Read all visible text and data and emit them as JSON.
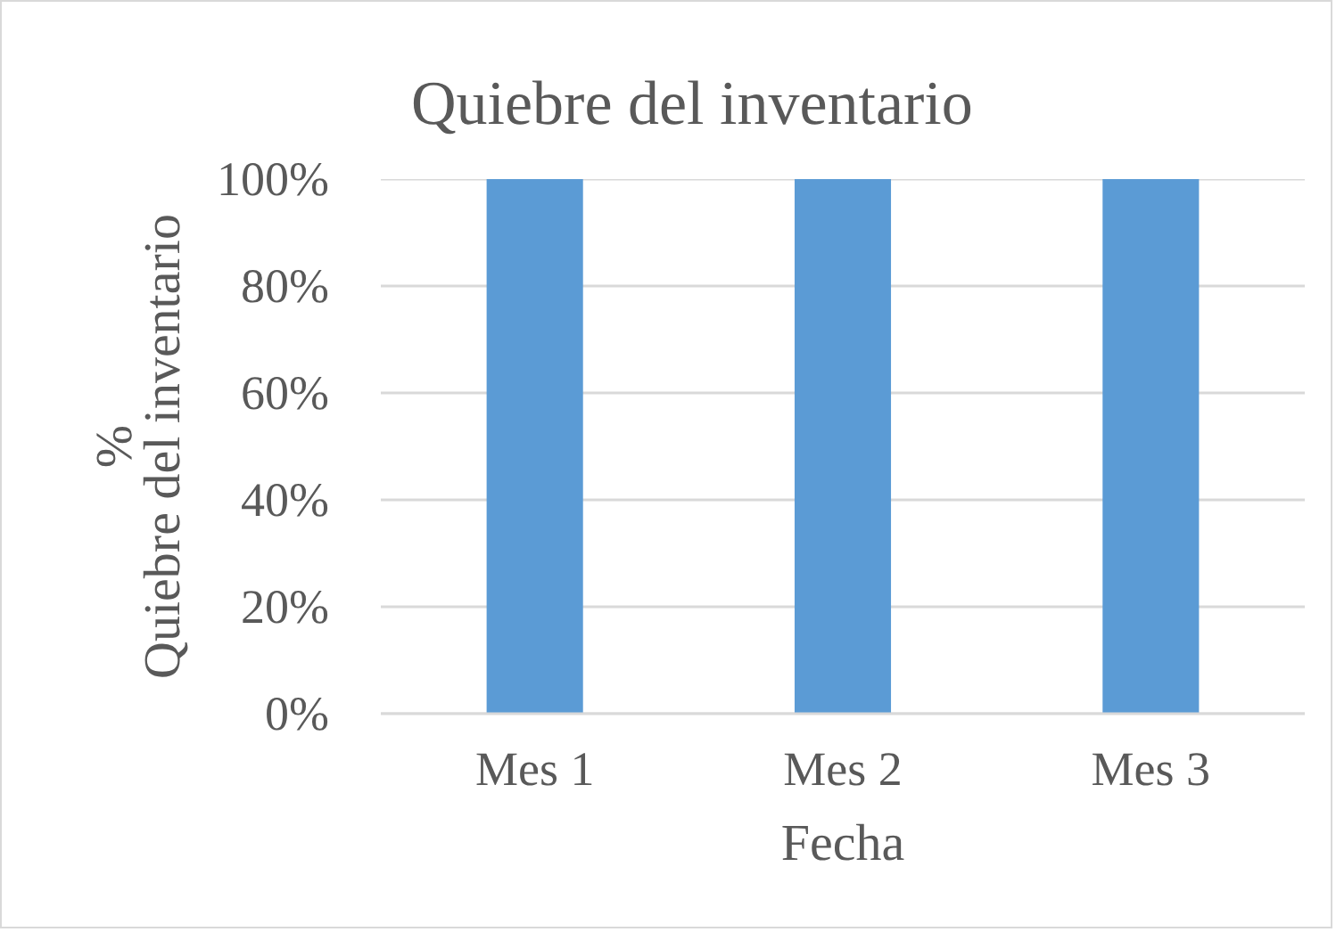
{
  "chart_data": {
    "type": "bar",
    "title": "Quiebre del inventario",
    "xlabel": "Fecha",
    "ylabel": "%\nQuiebre del inventario",
    "categories": [
      "Mes 1",
      "Mes 2",
      "Mes 3"
    ],
    "series": [
      {
        "color": "#5b9bd5",
        "values": [
          100,
          100,
          100
        ]
      }
    ],
    "ylim": [
      0,
      100
    ],
    "yticks": [
      {
        "value": 0,
        "label": "0%"
      },
      {
        "value": 20,
        "label": "20%"
      },
      {
        "value": 40,
        "label": "40%"
      },
      {
        "value": 60,
        "label": "60%"
      },
      {
        "value": 80,
        "label": "80%"
      },
      {
        "value": 100,
        "label": "100%"
      }
    ],
    "grid": "y"
  }
}
